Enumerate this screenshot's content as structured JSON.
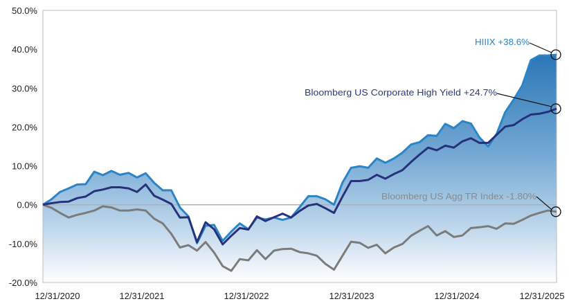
{
  "chart_data": {
    "type": "area",
    "title": "",
    "xlabel": "",
    "ylabel": "",
    "ylim": [
      -20,
      50
    ],
    "yticks": [
      "50.0%",
      "40.0%",
      "30.0%",
      "20.0%",
      "10.0%",
      "0.0%",
      "-10.0%",
      "-20.0%"
    ],
    "ytick_values": [
      50,
      40,
      30,
      20,
      10,
      0,
      -10,
      -20
    ],
    "xtick_labels": [
      "12/31/2020",
      "12/31/2021",
      "12/31/2022",
      "12/31/2023",
      "12/31/2024",
      "12/31/2025"
    ],
    "x_start": "12/31/2020",
    "x_end": "12/31/2025",
    "x_frequency": "monthly",
    "grid": false,
    "zero_line": true,
    "series": [
      {
        "name": "HIIIX",
        "annotation": "HIIIX +38.6%",
        "color": "#2a84c6",
        "filled": true,
        "values": [
          0,
          1.4,
          3.3,
          4.2,
          5.2,
          5.3,
          8.5,
          7.6,
          8.7,
          7.7,
          8.2,
          7.0,
          8.1,
          5.6,
          3.7,
          3.7,
          -0.7,
          -3.0,
          -9.9,
          -5.4,
          -5.2,
          -9.3,
          -6.9,
          -4.8,
          -6.3,
          -3.3,
          -3.8,
          -3.3,
          -3.9,
          -3.3,
          -0.6,
          2.2,
          2.2,
          1.4,
          0,
          5.7,
          9.5,
          9.9,
          9.5,
          11.9,
          10.8,
          11.9,
          13.4,
          15.5,
          16.1,
          17.9,
          17.7,
          20.8,
          19.7,
          21.5,
          20.9,
          17.3,
          15.0,
          18.2,
          23.8,
          27.1,
          30.7,
          37.2,
          38.4,
          38.4,
          38.6
        ]
      },
      {
        "name": "Bloomberg US Corporate High Yield",
        "annotation": "Bloomberg US Corporate High Yield +24.7%",
        "color": "#26317a",
        "filled": false,
        "values": [
          0,
          0.4,
          0.7,
          0.8,
          1.7,
          2.1,
          3.5,
          3.9,
          4.5,
          4.5,
          4.2,
          3.3,
          5.2,
          2.3,
          1.3,
          0.2,
          -3.3,
          -3.2,
          -9.6,
          -4.5,
          -6.3,
          -10.2,
          -8.0,
          -6.0,
          -6.4,
          -3.0,
          -4.2,
          -3.2,
          -2.3,
          -3.3,
          -1.6,
          -0.2,
          0.2,
          -0.9,
          -2.1,
          2.1,
          6.1,
          6.1,
          6.4,
          7.7,
          6.7,
          7.9,
          8.9,
          11.0,
          12.9,
          14.7,
          14.0,
          15.2,
          14.7,
          16.3,
          17.1,
          15.9,
          15.9,
          18.0,
          20.1,
          20.5,
          22.0,
          23.2,
          23.4,
          23.9,
          24.7
        ]
      },
      {
        "name": "Bloomberg US Agg TR Index",
        "annotation": "Bloomberg US Agg TR Index -1.80%",
        "color": "#7b7b7b",
        "filled": false,
        "values": [
          0,
          -0.8,
          -2.1,
          -3.3,
          -2.6,
          -2.1,
          -1.5,
          -0.4,
          -0.7,
          -1.5,
          -1.5,
          -1.2,
          -1.5,
          -3.6,
          -4.8,
          -7.5,
          -11.0,
          -10.4,
          -11.8,
          -9.6,
          -12.3,
          -15.8,
          -17.0,
          -14.0,
          -14.3,
          -11.7,
          -14.0,
          -11.8,
          -11.4,
          -11.3,
          -12.2,
          -12.5,
          -13.1,
          -15.2,
          -16.7,
          -13.1,
          -9.5,
          -9.8,
          -11.1,
          -10.3,
          -12.5,
          -11.0,
          -10.1,
          -8.0,
          -6.7,
          -5.5,
          -7.9,
          -6.8,
          -8.3,
          -7.9,
          -6.0,
          -5.8,
          -5.5,
          -6.2,
          -4.8,
          -4.9,
          -3.9,
          -2.8,
          -2.1,
          -1.5,
          -1.8
        ]
      }
    ],
    "annotation_colors": {
      "HIIIX": "#2a84c6",
      "high_yield": "#2a3a80",
      "agg": "#8a8a8a"
    }
  }
}
